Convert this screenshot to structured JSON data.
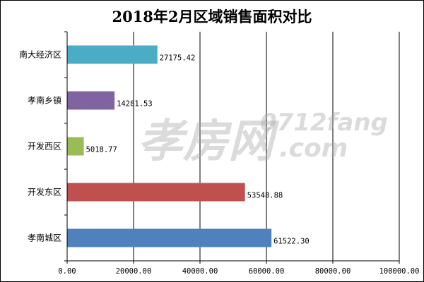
{
  "chart_data": {
    "type": "bar",
    "orientation": "horizontal",
    "title": "2018年2月区域销售面积对比",
    "xlabel": "",
    "ylabel": "",
    "categories": [
      "南大经济区",
      "孝南乡镇",
      "开发西区",
      "开发东区",
      "孝南城区"
    ],
    "values": [
      27175.42,
      14281.53,
      5018.77,
      53548.88,
      61522.3
    ],
    "data_labels": [
      "27175.42",
      "14281.53",
      "5018.77",
      "53548.88",
      "61522.30"
    ],
    "colors": [
      "#4bacc6",
      "#8064a2",
      "#9bbb59",
      "#c0504d",
      "#4f81bd"
    ],
    "xlim": [
      0,
      100000
    ],
    "x_ticks": [
      0,
      20000,
      40000,
      60000,
      80000,
      100000
    ],
    "x_tick_labels": [
      "0.00",
      "20000.00",
      "40000.00",
      "60000.00",
      "80000.00",
      "100000.00"
    ],
    "grid": true,
    "legend": "none"
  },
  "watermark": {
    "brand": "孝房网",
    "url": "0712fang",
    "url_suffix": ".com"
  }
}
